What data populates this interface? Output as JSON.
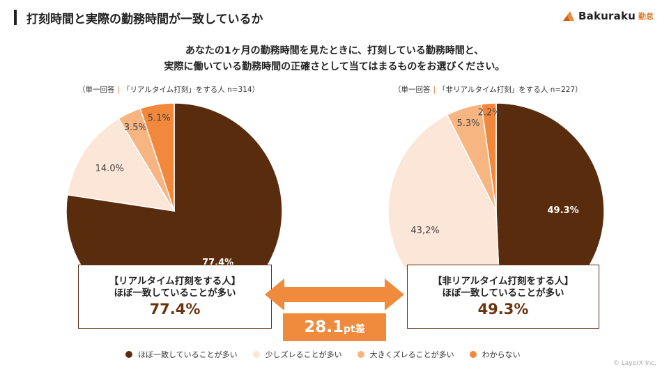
{
  "header": {
    "title": "打刻時間と実際の勤務時間が一致しているか",
    "logo_name": "Bakuraku",
    "logo_sub": "勤怠"
  },
  "question": {
    "line1": "あなたの1ヶ月の勤務時間を見たときに、打刻している勤務時間と、",
    "line2": "実際に働いている勤務時間の正確さとして当てはまるものをお選びください。"
  },
  "colors": {
    "c1": "#5a2c0e",
    "c2": "#fbe6d8",
    "c3": "#f7b582",
    "c4": "#f2883c",
    "accent": "#f08a3c",
    "callout_border": "#5a2e10",
    "callout_value": "#6b3410"
  },
  "chart_data": [
    {
      "type": "pie",
      "subtitle_prefix": "（単一回答",
      "subtitle_sep": "|",
      "subtitle_main": "「リアルタイム打刻」をする人 n=314）",
      "categories": [
        "ほぼ一致していることが多い",
        "少しズレることが多い",
        "大きくズレることが多い",
        "わからない"
      ],
      "values": [
        77.4,
        14.0,
        3.5,
        5.1
      ],
      "labels": [
        "77.4%",
        "14.0%",
        "3.5%",
        "5.1%"
      ],
      "start": "12 o'clock",
      "direction": "clockwise"
    },
    {
      "type": "pie",
      "subtitle_prefix": "（単一回答",
      "subtitle_sep": "|",
      "subtitle_main": "「非リアルタイム打刻」をする人 n=227）",
      "categories": [
        "ほぼ一致していることが多い",
        "少しズレることが多い",
        "大きくズレることが多い",
        "わからない"
      ],
      "values": [
        49.3,
        43.2,
        5.3,
        2.2
      ],
      "labels": [
        "49.3%",
        "43,2%",
        "5.3%",
        "2.2%"
      ],
      "start": "12 o'clock",
      "direction": "clockwise"
    }
  ],
  "callouts": {
    "left": {
      "head1": "【リアルタイム打刻をする人】",
      "head2": "ほぼ一致していることが多い",
      "value": "77.4%"
    },
    "right": {
      "head1": "【非リアルタイム打刻をする人】",
      "head2": "ほぼ一致していることが多い",
      "value": "49.3%"
    }
  },
  "difference": {
    "value": "28.1",
    "unit": "pt差"
  },
  "legend": {
    "items": [
      {
        "label": "ほぼ一致していることが多い",
        "color": "#5a2c0e"
      },
      {
        "label": "少しズレることが多い",
        "color": "#fbe6d8"
      },
      {
        "label": "大きくズレることが多い",
        "color": "#f7b582"
      },
      {
        "label": "わからない",
        "color": "#f2883c"
      }
    ]
  },
  "footer": {
    "copyright": "© LayerX Inc."
  }
}
